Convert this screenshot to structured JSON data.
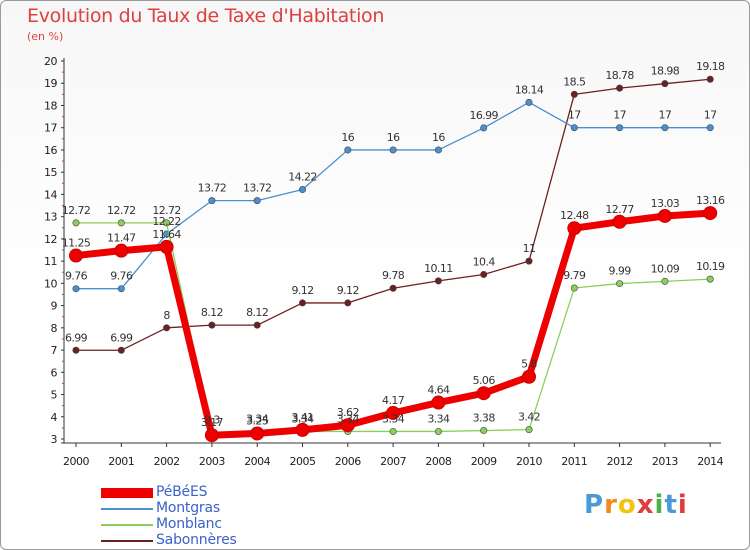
{
  "title": "Evolution du Taux de Taxe d'Habitation",
  "unit_label": "(en %)",
  "logo_text": "Proxiti",
  "logo_colors": [
    "#4a9ad8",
    "#f08a1e",
    "#f1c40f",
    "#e03c3c",
    "#4ab04a",
    "#4a9ad8",
    "#e03c3c"
  ],
  "chart_data": {
    "type": "line",
    "title": "Evolution du Taux de Taxe d'Habitation",
    "ylabel": "(en %)",
    "xlabel": "",
    "ylim": [
      3,
      20
    ],
    "grid": false,
    "legend_position": "bottom-left",
    "x": [
      "2000",
      "2001",
      "2002",
      "2003",
      "2004",
      "2005",
      "2006",
      "2007",
      "2008",
      "2009",
      "2010",
      "2011",
      "2012",
      "2013",
      "2014"
    ],
    "y_ticks": [
      "3",
      "4",
      "5",
      "6",
      "7",
      "8",
      "9",
      "10",
      "11",
      "12",
      "13",
      "14",
      "15",
      "16",
      "17",
      "18",
      "19",
      "20"
    ],
    "series": [
      {
        "name": "PéBéES",
        "color": "#ee0000",
        "values": [
          11.25,
          11.47,
          11.64,
          3.17,
          3.25,
          3.41,
          3.62,
          4.17,
          4.64,
          5.06,
          5.8,
          12.48,
          12.77,
          13.03,
          13.16
        ],
        "labels": [
          "11.25",
          "11.47",
          "11.64",
          "3.17",
          "3.25",
          "3.41",
          "3.62",
          "4.17",
          "4.64",
          "5.06",
          "5.8",
          "12.48",
          "12.77",
          "13.03",
          "13.16"
        ]
      },
      {
        "name": "Montgras",
        "color": "#4a8fcf",
        "values": [
          9.76,
          9.76,
          12.22,
          13.72,
          13.72,
          14.22,
          16,
          16,
          16,
          16.99,
          18.14,
          17,
          17,
          17,
          17
        ],
        "labels": [
          "9.76",
          "9.76",
          "12.22",
          "13.72",
          "13.72",
          "14.22",
          "16",
          "16",
          "16",
          "16.99",
          "18.14",
          "17",
          "17",
          "17",
          "17"
        ]
      },
      {
        "name": "Monblanc",
        "color": "#8ccf5a",
        "values": [
          12.72,
          12.72,
          12.72,
          3.3,
          3.34,
          3.34,
          3.34,
          3.34,
          3.34,
          3.38,
          3.42,
          9.79,
          9.99,
          10.09,
          10.19
        ],
        "labels": [
          "12.72",
          "12.72",
          "12.72",
          "3.3",
          "3.34",
          "3.34",
          "3.34",
          "3.34",
          "3.34",
          "3.38",
          "3.42",
          "9.79",
          "9.99",
          "10.09",
          "10.19"
        ]
      },
      {
        "name": "Sabonnères",
        "color": "#6e1f22",
        "values": [
          6.99,
          6.99,
          8,
          8.12,
          8.12,
          9.12,
          9.12,
          9.78,
          10.11,
          10.4,
          11,
          18.5,
          18.78,
          18.98,
          19.18
        ],
        "labels": [
          "6.99",
          "6.99",
          "8",
          "8.12",
          "8.12",
          "9.12",
          "9.12",
          "9.78",
          "10.11",
          "10.4",
          "11",
          "18.5",
          "18.78",
          "18.98",
          "19.18"
        ]
      }
    ]
  }
}
